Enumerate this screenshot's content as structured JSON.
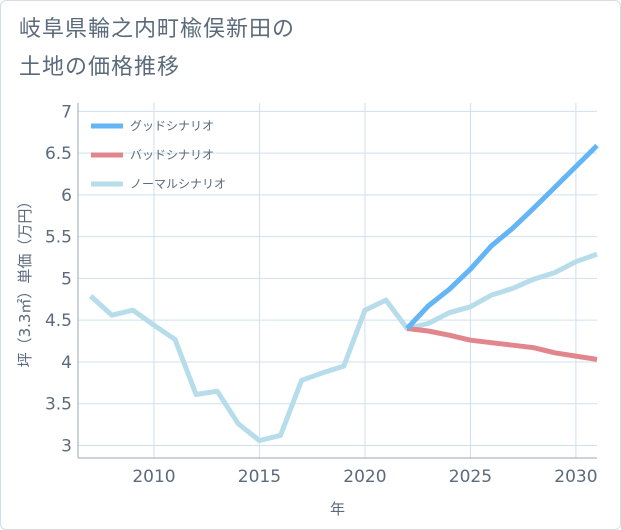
{
  "title_line1": "岐阜県輪之内町楡俣新田の",
  "title_line2": "土地の価格推移",
  "chart_data": {
    "type": "line",
    "title": "岐阜県輪之内町楡俣新田の土地の価格推移",
    "xlabel": "年",
    "ylabel": "坪（3.3㎡）単価（万円）",
    "xlim": [
      2006.4,
      2031
    ],
    "ylim": [
      2.85,
      7.1
    ],
    "xticks": [
      2010,
      2015,
      2020,
      2025,
      2030
    ],
    "xtick_labels": [
      "2010",
      "2015",
      "2020",
      "2025",
      "2030"
    ],
    "yticks": [
      3,
      3.5,
      4,
      4.5,
      5,
      5.5,
      6,
      6.5,
      7
    ],
    "ytick_labels": [
      "3",
      "3.5",
      "4",
      "4.5",
      "5",
      "5.5",
      "6",
      "6.5",
      "7"
    ],
    "grid": true,
    "legend_position": "top-left",
    "series": [
      {
        "name": "グッドシナリオ",
        "color": "#64b5f6",
        "x": [
          2022,
          2023,
          2024,
          2025,
          2026,
          2027,
          2028,
          2029,
          2030,
          2031
        ],
        "y": [
          4.4,
          4.67,
          4.87,
          5.11,
          5.39,
          5.6,
          5.84,
          6.09,
          6.34,
          6.59
        ]
      },
      {
        "name": "バッドシナリオ",
        "color": "#e0868c",
        "x": [
          2022,
          2023,
          2024,
          2025,
          2026,
          2027,
          2028,
          2029,
          2030,
          2031
        ],
        "y": [
          4.4,
          4.37,
          4.32,
          4.26,
          4.23,
          4.2,
          4.17,
          4.11,
          4.07,
          4.03
        ]
      },
      {
        "name": "ノーマルシナリオ",
        "color": "#b7dcea",
        "x": [
          2007,
          2008,
          2009,
          2010,
          2011,
          2012,
          2013,
          2014,
          2015,
          2016,
          2017,
          2018,
          2019,
          2020,
          2021,
          2022,
          2023,
          2024,
          2025,
          2026,
          2027,
          2028,
          2029,
          2030,
          2031
        ],
        "y": [
          4.79,
          4.56,
          4.62,
          4.44,
          4.27,
          3.61,
          3.65,
          3.26,
          3.06,
          3.12,
          3.78,
          3.87,
          3.95,
          4.62,
          4.74,
          4.4,
          4.46,
          4.59,
          4.66,
          4.8,
          4.88,
          4.99,
          5.07,
          5.2,
          5.29
        ]
      }
    ]
  }
}
